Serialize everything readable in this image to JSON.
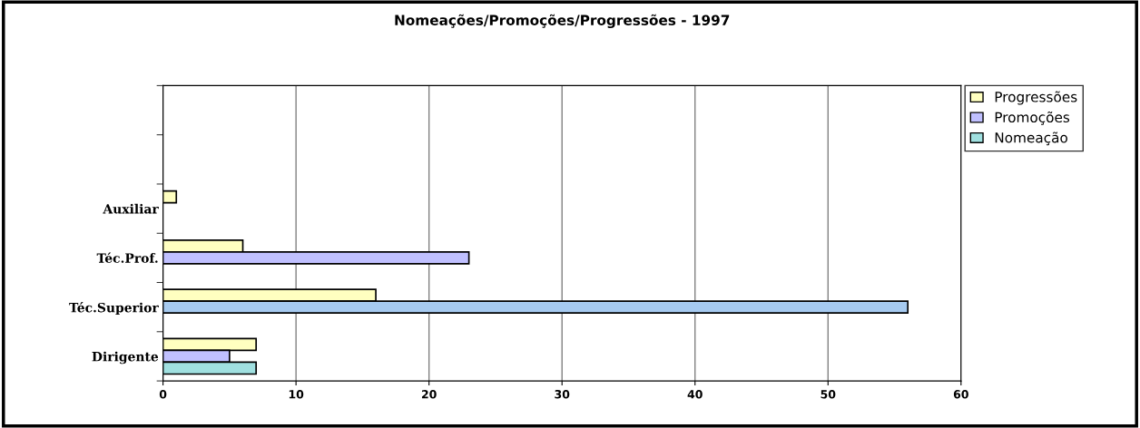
{
  "chart_data": {
    "type": "bar",
    "orientation": "horizontal",
    "title": "Nomeações/Promoções/Progressões - 1997",
    "categories": [
      null,
      null,
      "Auxiliar",
      "Téc.Prof.",
      "Téc.Superior",
      "Dirigente"
    ],
    "series": [
      {
        "name": "Progressões",
        "color": "#ffffc0",
        "values": [
          null,
          null,
          1,
          6,
          16,
          7
        ]
      },
      {
        "name": "Promoções",
        "color": "#c0c0ff",
        "colors": [
          "#c0c0ff",
          "#c0c0ff",
          "#c0c0ff",
          "#c0c0ff",
          "#a6caf0",
          "#c0c0ff"
        ],
        "values": [
          null,
          null,
          null,
          23,
          56,
          5
        ]
      },
      {
        "name": "Nomeação",
        "color": "#a0e0e0",
        "values": [
          null,
          null,
          null,
          null,
          null,
          7
        ]
      }
    ],
    "xlim": [
      0,
      60
    ],
    "xticks": [
      0,
      10,
      20,
      30,
      40,
      50,
      60
    ],
    "grid": "x",
    "legend": "top right"
  }
}
